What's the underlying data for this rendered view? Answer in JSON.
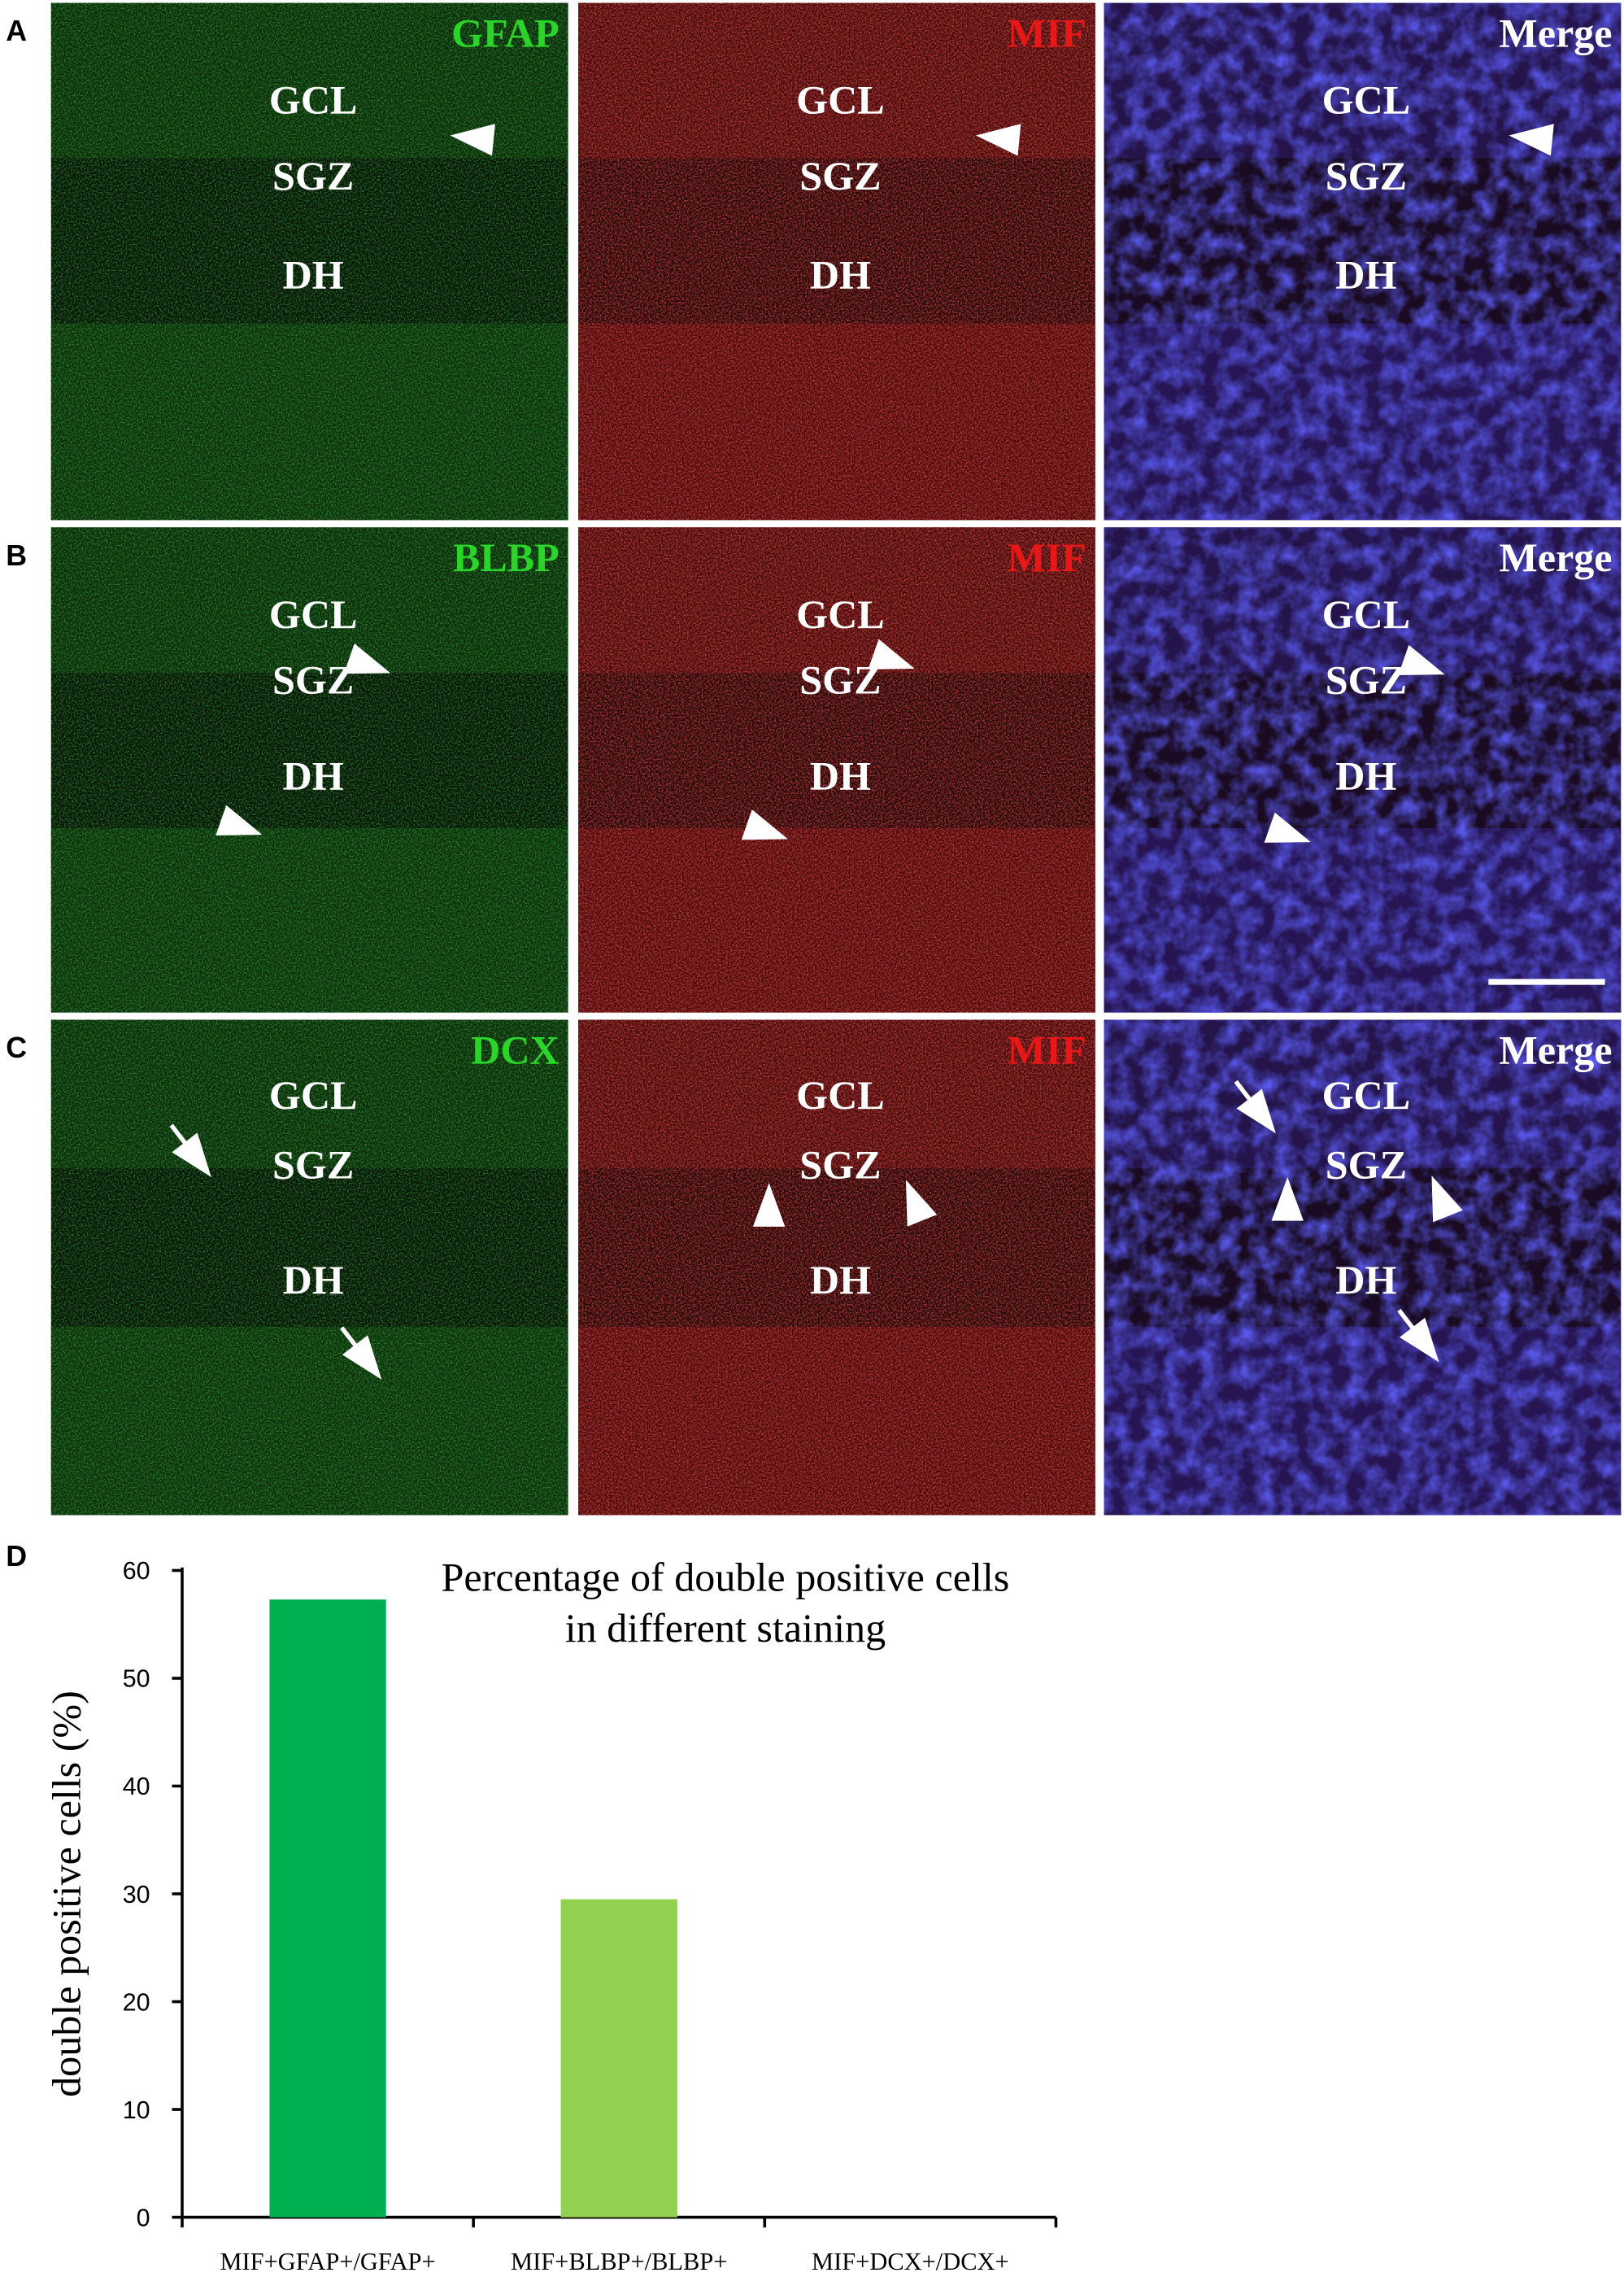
{
  "panels": [
    {
      "letter": "A",
      "markers": [
        "GFAP",
        "MIF",
        "Merge"
      ],
      "regions": [
        "GCL",
        "SGZ",
        "DH"
      ]
    },
    {
      "letter": "B",
      "markers": [
        "BLBP",
        "MIF",
        "Merge"
      ],
      "regions": [
        "GCL",
        "SGZ",
        "DH"
      ]
    },
    {
      "letter": "C",
      "markers": [
        "DCX",
        "MIF",
        "Merge"
      ],
      "regions": [
        "GCL",
        "SGZ",
        "DH"
      ]
    }
  ],
  "chart_letter": "D",
  "chart_data": {
    "type": "bar",
    "title_lines": [
      "Percentage of double positive cells",
      "in different staining"
    ],
    "y_label": "double positive cells (%)",
    "categories": [
      "MIF+GFAP+/GFAP+",
      "MIF+BLBP+/BLBP+",
      "MIF+DCX+/DCX+"
    ],
    "values": [
      57.3,
      29.5,
      0
    ],
    "colors": [
      "#00b050",
      "#92d050",
      "#92d050"
    ],
    "ylim": [
      0,
      60
    ],
    "yticks": [
      0,
      10,
      20,
      30,
      40,
      50,
      60
    ],
    "grid": false
  }
}
